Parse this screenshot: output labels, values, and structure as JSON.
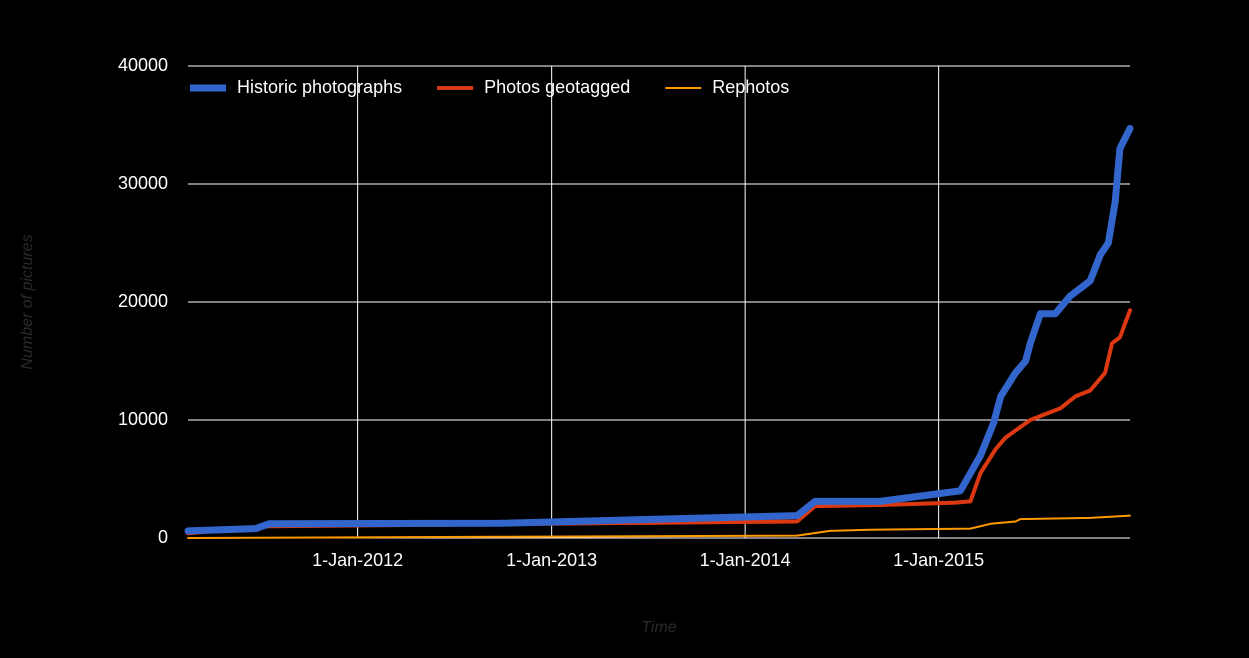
{
  "chart_data": {
    "type": "line",
    "y_label": "Number of pictures",
    "x_label": "Time",
    "xlim": [
      "2011-02-15",
      "2015-12-28"
    ],
    "xticks": [
      {
        "value": "2012-01-01",
        "label": "1-Jan-2012"
      },
      {
        "value": "2013-01-01",
        "label": "1-Jan-2013"
      },
      {
        "value": "2014-01-01",
        "label": "1-Jan-2014"
      },
      {
        "value": "2015-01-01",
        "label": "1-Jan-2015"
      }
    ],
    "ylim": [
      0,
      40000
    ],
    "yticks": [
      0,
      10000,
      20000,
      30000,
      40000
    ],
    "grid": true,
    "legend": "top",
    "series": [
      {
        "name": "Historic photographs",
        "color": "#3366cc",
        "line_width": 7,
        "x": [
          "2011-02-15",
          "2011-06-23",
          "2011-07-18",
          "2012-09-27",
          "2014-04-09",
          "2014-05-13",
          "2014-09-12",
          "2015-02-11",
          "2015-03-21",
          "2015-04-15",
          "2015-04-28",
          "2015-05-26",
          "2015-06-14",
          "2015-06-23",
          "2015-07-12",
          "2015-08-09",
          "2015-09-06",
          "2015-10-14",
          "2015-11-02",
          "2015-11-17",
          "2015-11-30",
          "2015-12-09",
          "2015-12-28"
        ],
        "values": [
          600,
          800,
          1200,
          1250,
          1900,
          3100,
          3100,
          4000,
          7000,
          9800,
          12000,
          14000,
          15000,
          16500,
          19000,
          19000,
          20500,
          21800,
          24000,
          25000,
          28500,
          33000,
          34700
        ]
      },
      {
        "name": "Photos geotagged",
        "color": "#dc3912",
        "line_width": 4,
        "x": [
          "2011-02-15",
          "2011-07-18",
          "2014-04-09",
          "2014-05-13",
          "2014-09-12",
          "2015-02-02",
          "2015-03-02",
          "2015-03-21",
          "2015-04-18",
          "2015-05-07",
          "2015-06-23",
          "2015-07-21",
          "2015-08-19",
          "2015-09-16",
          "2015-10-14",
          "2015-11-11",
          "2015-11-24",
          "2015-12-09",
          "2015-12-28"
        ],
        "values": [
          400,
          1000,
          1400,
          2700,
          2800,
          3000,
          3100,
          5500,
          7500,
          8500,
          10000,
          10500,
          11000,
          12000,
          12500,
          14000,
          16500,
          17000,
          19300
        ]
      },
      {
        "name": "Rephotos",
        "color": "#ff9900",
        "line_width": 2,
        "x": [
          "2011-02-15",
          "2012-09-27",
          "2014-04-09",
          "2014-06-10",
          "2014-08-24",
          "2015-03-02",
          "2015-04-09",
          "2015-05-26",
          "2015-06-04",
          "2015-10-14",
          "2015-12-28"
        ],
        "values": [
          0,
          100,
          200,
          600,
          700,
          800,
          1200,
          1400,
          1600,
          1700,
          1900
        ]
      }
    ]
  }
}
